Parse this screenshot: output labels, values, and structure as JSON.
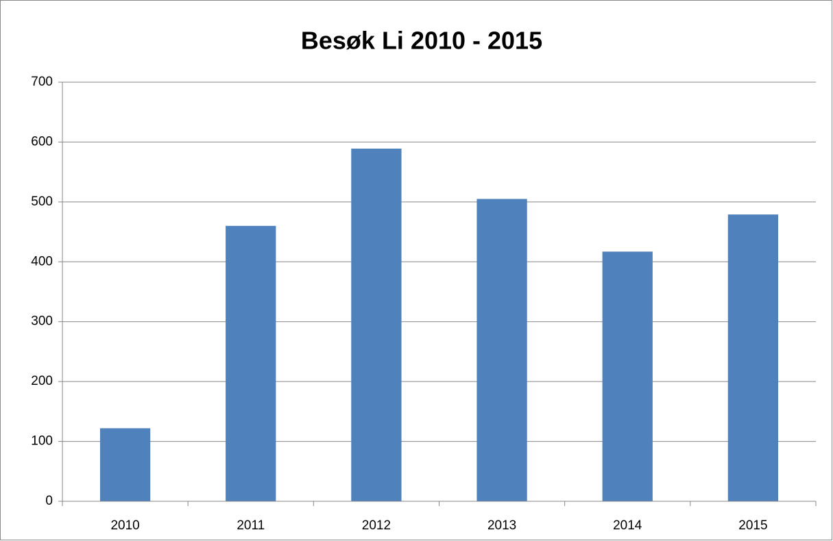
{
  "chart_data": {
    "type": "bar",
    "title": "Besøk Li 2010 - 2015",
    "categories": [
      "2010",
      "2011",
      "2012",
      "2013",
      "2014",
      "2015"
    ],
    "values": [
      122,
      460,
      589,
      505,
      417,
      479
    ],
    "color": "#4f81bd",
    "ylim": [
      0,
      700
    ],
    "yticks": [
      0,
      100,
      200,
      300,
      400,
      500,
      600,
      700
    ],
    "grid": true
  }
}
